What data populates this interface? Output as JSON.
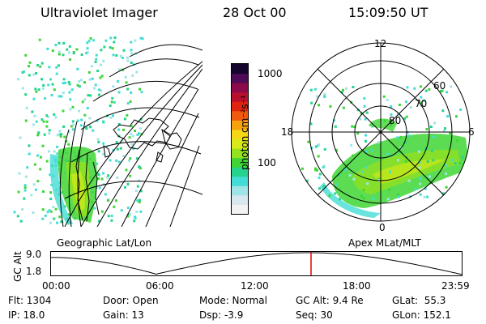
{
  "header": {
    "instrument": "Ultraviolet Imager",
    "date": "28 Oct 00",
    "time": "15:09:50 UT"
  },
  "geo_panel": {
    "label": "Geographic Lat/Lon"
  },
  "colorbar": {
    "unit_label": "photon cm⁻²s⁻¹",
    "tick_labels": [
      "1000",
      "100"
    ],
    "colors": [
      "#f2f2f2",
      "#d9e8ee",
      "#9fe5e8",
      "#43dcd6",
      "#25d38c",
      "#3fd635",
      "#94e21d",
      "#d8ea18",
      "#f6d716",
      "#f6a20f",
      "#f15a0e",
      "#e0240d",
      "#b8102c",
      "#8a0a4a",
      "#4d0a55",
      "#13052d"
    ]
  },
  "polar_panel": {
    "label": "Apex MLat/MLT",
    "mlt_labels": {
      "top": "12",
      "left": "18",
      "right": "6",
      "bottom": "0"
    },
    "lat_labels": [
      "60",
      "70",
      "80"
    ]
  },
  "timeline": {
    "y_label": "GC Alt",
    "y_ticks": [
      "9.0",
      "1.8"
    ],
    "x_ticks": [
      "00:00",
      "06:00",
      "12:00",
      "18:00",
      "23:59"
    ],
    "marker_time": "15:09:50",
    "marker_color": "#e00000"
  },
  "info": {
    "flt": "Flt: 1304",
    "ip": "IP: 18.0",
    "door": "Door: Open",
    "gain": "Gain: 13",
    "mode": "Mode: Normal",
    "dsp": "Dsp:   -3.9",
    "gc_alt": "GC Alt: 9.4 Re",
    "seq": "Seq: 30",
    "glat": "GLat:  55.3",
    "glon": "GLon: 152.1"
  }
}
